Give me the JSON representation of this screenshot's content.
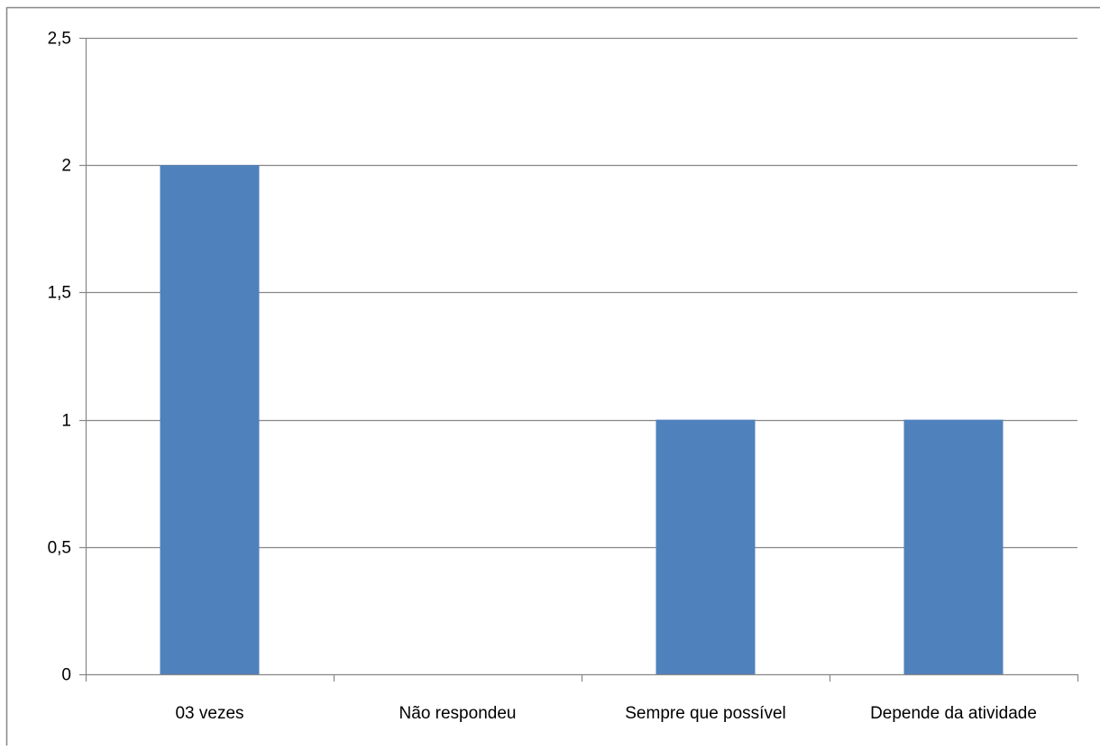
{
  "chart_data": {
    "type": "bar",
    "title": "",
    "xlabel": "",
    "ylabel": "",
    "categories": [
      "03 vezes",
      "Não respondeu",
      "Sempre que possível",
      "Depende da atividade"
    ],
    "values": [
      2,
      0,
      1,
      1
    ],
    "ylim": [
      0,
      2.5
    ],
    "yticks": [
      0,
      0.5,
      1,
      1.5,
      2,
      2.5
    ],
    "ytick_labels": [
      "0",
      "0,5",
      "1",
      "1,5",
      "2",
      "2,5"
    ],
    "grid": true,
    "legend": "none",
    "bar_color": "#4F81BD",
    "gridline_color": "#868686",
    "frame_color": "#868686"
  }
}
